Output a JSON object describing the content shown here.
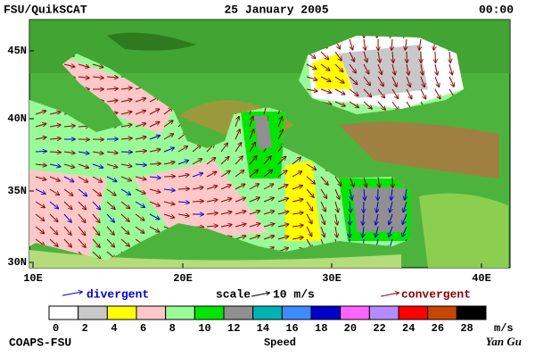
{
  "header": {
    "source": "FSU/QuikSCAT",
    "date": "25 January 2005",
    "time": "00:00"
  },
  "map": {
    "lat_labels": [
      "45N",
      "40N",
      "35N",
      "30N"
    ],
    "lon_labels": [
      "10E",
      "20E",
      "30E",
      "40E"
    ]
  },
  "legend": {
    "divergent": "divergent",
    "scale": "scale",
    "scale_value": "10 m/s",
    "convergent": "convergent"
  },
  "colorbar": {
    "colors": [
      "#ffffff",
      "#c8c8c8",
      "#ffff00",
      "#ffc8c8",
      "#98fb98",
      "#00e600",
      "#909090",
      "#00b4b4",
      "#3c8cff",
      "#0000c8",
      "#ff64ff",
      "#b48cff",
      "#ff0000",
      "#c84600",
      "#000000"
    ],
    "labels": [
      "0",
      "2",
      "4",
      "6",
      "8",
      "10",
      "12",
      "14",
      "16",
      "18",
      "20",
      "22",
      "24",
      "26",
      "28"
    ],
    "unit": "m/s",
    "title": "Speed"
  },
  "footer": {
    "credit": "COAPS-FSU",
    "author": "Yan Gu"
  }
}
